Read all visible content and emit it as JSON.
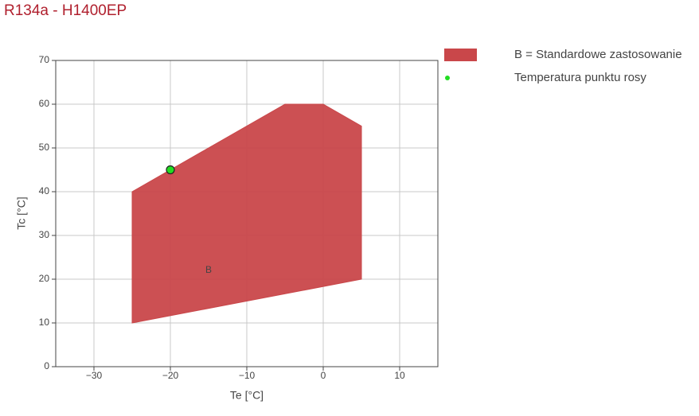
{
  "chart_data": {
    "type": "scatter",
    "title": "R134a - H1400EP",
    "x_label": "Te [°C]",
    "y_label": "Tc [°C]",
    "xlim": [
      -35,
      15
    ],
    "xticks": [
      {
        "value": -30,
        "label": "−30"
      },
      {
        "value": -20,
        "label": "−20"
      },
      {
        "value": -10,
        "label": "−10"
      },
      0,
      10
    ],
    "ylim": [
      0,
      70
    ],
    "yticks": [
      0,
      10,
      20,
      30,
      40,
      50,
      60,
      70
    ],
    "grid": true,
    "series": [
      {
        "name": "B = Standardowe zastosowanie",
        "color": "#c9474a",
        "mode": "fill",
        "x": [
          -25,
          -25,
          -5,
          0,
          5,
          5
        ],
        "values": [
          10,
          40,
          60,
          60,
          55,
          20
        ]
      },
      {
        "name": "Temperatura punktu rosy",
        "color": "#22dd22",
        "mode": "markers",
        "x": [
          -20
        ],
        "values": [
          45
        ]
      }
    ],
    "annotations": [
      {
        "text": "B",
        "x": -15,
        "y": 22
      }
    ]
  }
}
